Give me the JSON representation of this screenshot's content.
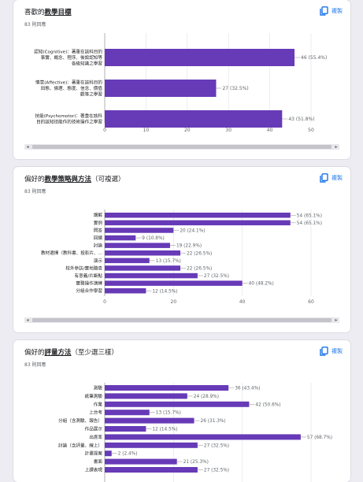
{
  "copy_label": "複製",
  "colors": {
    "bar": "#673ab7",
    "accent": "#1a73e8",
    "grid": "#e2e2e2"
  },
  "cards": [
    {
      "title_prefix": "喜歡的",
      "title_bold": "教學目標",
      "title_suffix": "",
      "count": "83 則回應",
      "chart_data": {
        "type": "bar",
        "orientation": "horizontal",
        "categories": [
          "認知(Cognitive)：著重在該科目的事實、概念、程序、後設認知等各級知識之學習",
          "情意(Affective)：著重在該科目的田態、倫理、態度、信念、價值觀等之學習",
          "技能(Psychomotor)：著重在該科目的該知技能作的技術操作之學習"
        ],
        "label_lines": [
          [
            "認知(Cognitive)：著重在該科目的",
            "事實、概念、程序、後設認知等",
            "各級知識之學習"
          ],
          [
            "情意(Affective)：著重在該科目的",
            "田態、倫理、態度、信念、價值",
            "觀等之學習"
          ],
          [
            "技能(Psychomotor)：著重在該科",
            "目的該知技能作的技術操作之學習"
          ]
        ],
        "values": [
          46,
          27,
          43
        ],
        "data_labels": [
          "46 (55.4%)",
          "27 (32.5%)",
          "43 (51.8%)"
        ],
        "xlim": [
          0,
          50
        ],
        "ticks": [
          "0",
          "10",
          "20",
          "30",
          "40",
          "50"
        ],
        "grid": true
      }
    },
    {
      "title_prefix": "偏好的",
      "title_bold": "教學策略與方法",
      "title_suffix": "（可複選）",
      "count": "83 則回應",
      "chart_data": {
        "type": "bar",
        "orientation": "horizontal",
        "categories": [
          "講解",
          "實例",
          "問答",
          "回饋",
          "討論",
          "教材選擇（教科書、投影片、...",
          "演示",
          "校外參訪/實地踏查",
          "有意義/片斷點",
          "實務操作演練",
          "分組合作學習"
        ],
        "label_lines": [
          [
            "講解"
          ],
          [
            "實例"
          ],
          [
            "問答"
          ],
          [
            "回饋"
          ],
          [
            "討論"
          ],
          [
            "教材選擇（教科書、投影片、..."
          ],
          [
            "演示"
          ],
          [
            "校外參訪/實地踏查"
          ],
          [
            "有意義/片斷點"
          ],
          [
            "實務操作演練"
          ],
          [
            "分組合作學習"
          ]
        ],
        "values": [
          54,
          54,
          20,
          9,
          19,
          22,
          13,
          22,
          27,
          40,
          12
        ],
        "data_labels": [
          "54 (65.1%)",
          "54 (65.1%)",
          "20 (24.1%)",
          "9 (10.8%)",
          "19 (22.9%)",
          "22 (26.5%)",
          "13 (15.7%)",
          "22 (26.5%)",
          "27 (32.5%)",
          "40 (48.2%)",
          "12 (14.5%)"
        ],
        "xlim": [
          0,
          60
        ],
        "ticks": [
          "0",
          "20",
          "40",
          "60"
        ],
        "grid": true
      }
    },
    {
      "title_prefix": "偏好的",
      "title_bold": "評量方法",
      "title_suffix": "（至少選三樣）",
      "count": "83 則回應",
      "chart_data": {
        "type": "bar",
        "orientation": "horizontal",
        "categories": [
          "測驗",
          "紙筆測驗",
          "作業",
          "上台考",
          "分組（含測驗、報告）",
          "作品展示",
          "出席率",
          "討論（含評量、線上）",
          "計畫提案",
          "書面",
          "上課表現"
        ],
        "label_lines": [
          [
            "測驗"
          ],
          [
            "紙筆測驗"
          ],
          [
            "作業"
          ],
          [
            "上台考"
          ],
          [
            "分組（含測驗、報告）"
          ],
          [
            "作品展示"
          ],
          [
            "出席率"
          ],
          [
            "討論（含評量、線上）"
          ],
          [
            "計畫提案"
          ],
          [
            "書面"
          ],
          [
            "上課表現"
          ]
        ],
        "values": [
          36,
          24,
          42,
          13,
          26,
          12,
          57,
          27,
          2,
          21,
          27
        ],
        "data_labels": [
          "36 (43.4%)",
          "24 (28.9%)",
          "42 (50.6%)",
          "13 (15.7%)",
          "26 (31.3%)",
          "12 (14.5%)",
          "57 (68.7%)",
          "27 (32.5%)",
          "2 (2.4%)",
          "21 (25.3%)",
          "27 (32.5%)"
        ],
        "xlim": [
          0,
          60
        ],
        "ticks": [],
        "grid": true
      }
    }
  ]
}
